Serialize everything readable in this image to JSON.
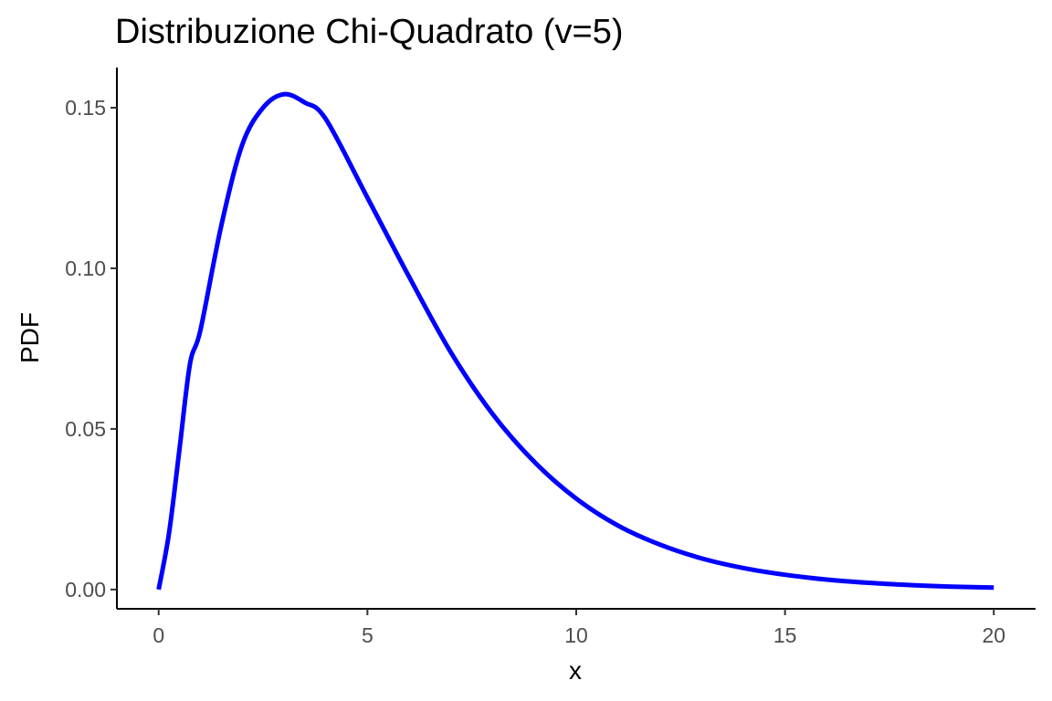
{
  "chart_data": {
    "type": "line",
    "title": "Distribuzione Chi-Quadrato (v=5)",
    "xlabel": "x",
    "ylabel": "PDF",
    "xlim": [
      -1,
      21
    ],
    "ylim": [
      -0.006,
      0.1625
    ],
    "x_ticks": [
      0,
      5,
      10,
      15,
      20
    ],
    "x_tick_labels": [
      "0",
      "5",
      "10",
      "15",
      "20"
    ],
    "y_ticks": [
      0.0,
      0.05,
      0.1,
      0.15
    ],
    "y_tick_labels": [
      "0.00",
      "0.05",
      "0.10",
      "0.15"
    ],
    "grid": false,
    "series": [
      {
        "color": "#0000ff",
        "x": [
          0,
          0.25,
          0.5,
          0.75,
          1,
          1.5,
          2,
          2.5,
          3,
          3.5,
          4,
          5,
          6,
          7,
          8,
          9,
          10,
          11,
          12,
          13,
          14,
          15,
          16,
          17,
          18,
          19,
          20
        ],
        "values": [
          0,
          0.0177,
          0.0438,
          0.0702,
          0.0807,
          0.1133,
          0.1384,
          0.15,
          0.1542,
          0.1516,
          0.1465,
          0.122,
          0.0973,
          0.0738,
          0.0546,
          0.0397,
          0.0283,
          0.0199,
          0.014,
          0.0097,
          0.0067,
          0.0046,
          0.0031,
          0.0021,
          0.0014,
          0.0009,
          0.0006
        ]
      }
    ]
  }
}
